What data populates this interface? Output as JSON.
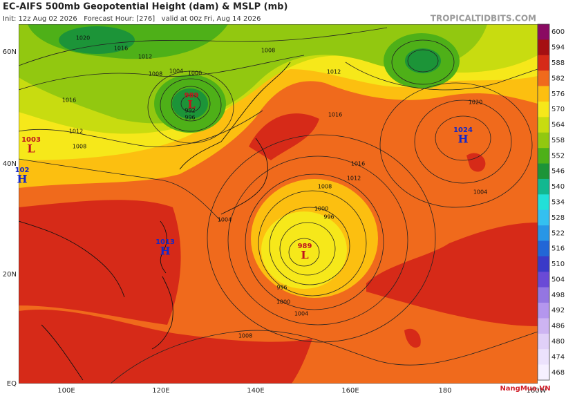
{
  "header": {
    "title": "EC-AIFS 500mb Geopotential Height (dam) & MSLP (mb)",
    "subtitle": "Init: 12z Aug 02 2026   Forecast Hour: [276]   valid at 00z Fri, Aug 14 2026",
    "source": "TROPICALTIDBITS.COM"
  },
  "map": {
    "lat_labels": [
      "60N",
      "40N",
      "20N",
      "EQ"
    ],
    "lon_labels": [
      "100E",
      "120E",
      "140E",
      "160E",
      "180",
      "160W"
    ],
    "pressure_centers": [
      {
        "value": "989",
        "letter": "L"
      },
      {
        "value": "989",
        "letter": "L"
      },
      {
        "value": "1024",
        "letter": "H"
      },
      {
        "value": "1013",
        "letter": "H"
      },
      {
        "value": "102",
        "letter": "H"
      },
      {
        "value": "1003",
        "letter": "L"
      }
    ],
    "isobar_labels": [
      "1020",
      "1016",
      "1012",
      "1008",
      "1004",
      "1000",
      "996",
      "992",
      "1016",
      "1012",
      "1008",
      "1004",
      "1000",
      "996",
      "996",
      "1000",
      "1004",
      "1008",
      "1008",
      "1020",
      "1016",
      "1012",
      "1004",
      "1016",
      "1012",
      "1008"
    ]
  },
  "colorbar": {
    "levels": [
      {
        "label": "600",
        "color": "#8a0a62"
      },
      {
        "label": "594",
        "color": "#a50f12"
      },
      {
        "label": "588",
        "color": "#d62a18"
      },
      {
        "label": "582",
        "color": "#f06a1c"
      },
      {
        "label": "576",
        "color": "#fcbf10"
      },
      {
        "label": "570",
        "color": "#f6e81a"
      },
      {
        "label": "564",
        "color": "#c8dc10"
      },
      {
        "label": "558",
        "color": "#92c810"
      },
      {
        "label": "552",
        "color": "#4eb018"
      },
      {
        "label": "546",
        "color": "#1c9438"
      },
      {
        "label": "540",
        "color": "#12b890"
      },
      {
        "label": "534",
        "color": "#22e0d8"
      },
      {
        "label": "528",
        "color": "#34c0f0"
      },
      {
        "label": "522",
        "color": "#2896e6"
      },
      {
        "label": "516",
        "color": "#2266d6"
      },
      {
        "label": "510",
        "color": "#3a3ac8"
      },
      {
        "label": "504",
        "color": "#6a4ad6"
      },
      {
        "label": "498",
        "color": "#9476e2"
      },
      {
        "label": "492",
        "color": "#b496ee"
      },
      {
        "label": "486",
        "color": "#cdb4f2"
      },
      {
        "label": "480",
        "color": "#e0d0f8"
      },
      {
        "label": "474",
        "color": "#ece2fc"
      },
      {
        "label": "468",
        "color": "#f6f0ff"
      }
    ]
  },
  "watermark": "NangMua.VN"
}
